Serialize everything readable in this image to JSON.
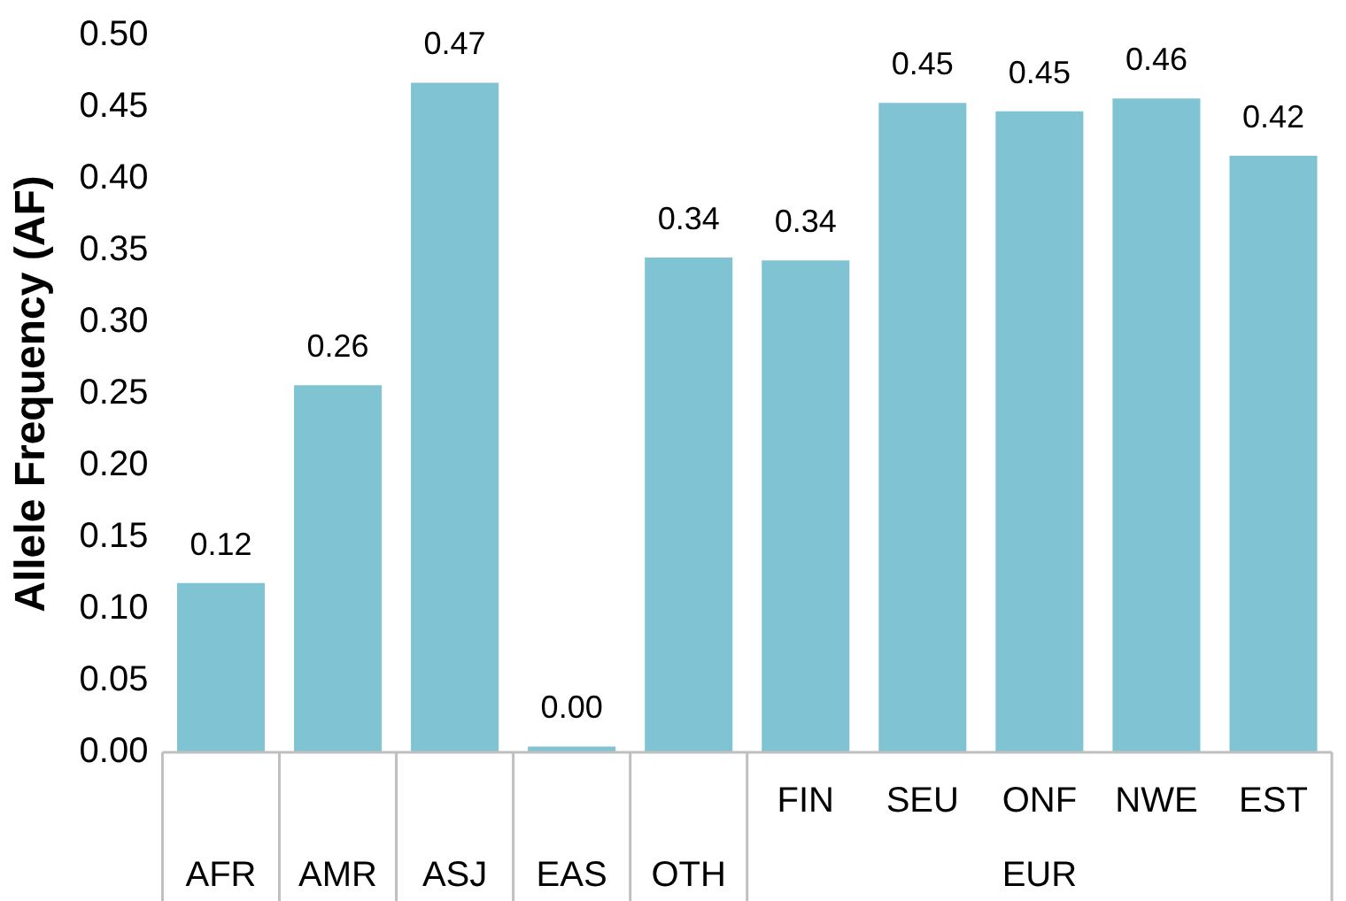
{
  "chart_data": {
    "type": "bar",
    "ylabel": "Allele Frequency (AF)",
    "categories": [
      "AFR",
      "AMR",
      "ASJ",
      "EAS",
      "OTH",
      "FIN",
      "SEU",
      "ONF",
      "NWE",
      "EST"
    ],
    "values": [
      0.118,
      0.256,
      0.467,
      0.004,
      0.345,
      0.343,
      0.453,
      0.447,
      0.456,
      0.416
    ],
    "value_labels": [
      "0.12",
      "0.26",
      "0.47",
      "0.00",
      "0.34",
      "0.34",
      "0.45",
      "0.45",
      "0.46",
      "0.42"
    ],
    "color": "#80c4d4",
    "ylim": [
      0,
      0.5
    ],
    "yticks": [
      {
        "value": 0,
        "label": "0.00"
      },
      {
        "value": 0.05,
        "label": "0.05"
      },
      {
        "value": 0.1,
        "label": "0.10"
      },
      {
        "value": 0.15,
        "label": "0.15"
      },
      {
        "value": 0.2,
        "label": "0.20"
      },
      {
        "value": 0.25,
        "label": "0.25"
      },
      {
        "value": 0.3,
        "label": "0.30"
      },
      {
        "value": 0.35,
        "label": "0.35"
      },
      {
        "value": 0.4,
        "label": "0.40"
      },
      {
        "value": 0.45,
        "label": "0.45"
      },
      {
        "value": 0.5,
        "label": "0.50"
      }
    ],
    "annotations": [
      "EUR"
    ],
    "grid": false,
    "legend": false
  }
}
